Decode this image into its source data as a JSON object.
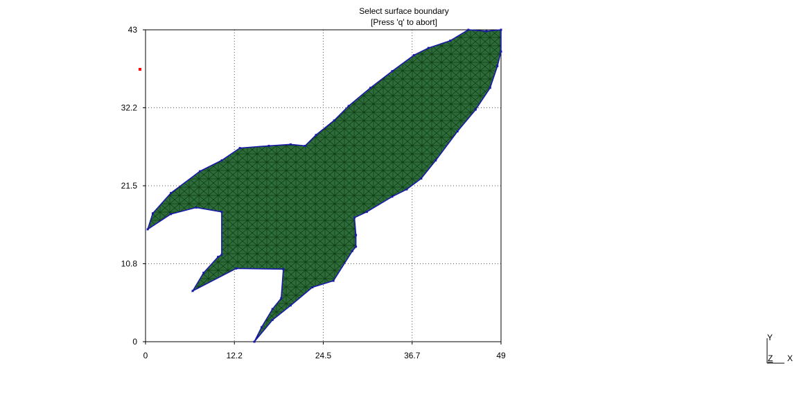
{
  "prompt": {
    "line1": "Select surface boundary",
    "line2": "[Press 'q' to abort]"
  },
  "axes_triad": {
    "y": "Y",
    "z": "Z",
    "x": "X"
  },
  "colors": {
    "mesh_fill": "#2e6b3a",
    "mesh_lines": "#0d3b12",
    "boundary": "#1a1aa8",
    "grid": "#555555",
    "marker": "#ff0000"
  },
  "chart_data": {
    "type": "mesh",
    "xlim": [
      0,
      49
    ],
    "ylim": [
      0,
      43
    ],
    "xticks": [
      "0",
      "12.2",
      "24.5",
      "36.7",
      "49"
    ],
    "yticks": [
      "0",
      "10.8",
      "21.5",
      "32.2",
      "43"
    ],
    "grid": "dotted",
    "boundary": [
      [
        15,
        0
      ],
      [
        17.5,
        3
      ],
      [
        20,
        5
      ],
      [
        23,
        7.5
      ],
      [
        25.9,
        8.4
      ],
      [
        28.5,
        12.5
      ],
      [
        29,
        13.1
      ],
      [
        29,
        14.7
      ],
      [
        28.8,
        17.1
      ],
      [
        30.5,
        17.9
      ],
      [
        34,
        20
      ],
      [
        36,
        21
      ],
      [
        38,
        22.5
      ],
      [
        40,
        25
      ],
      [
        43,
        29
      ],
      [
        45.5,
        32
      ],
      [
        47.5,
        35
      ],
      [
        48.5,
        38
      ],
      [
        49,
        40
      ],
      [
        49,
        43
      ],
      [
        47,
        42.8
      ],
      [
        44.5,
        43
      ],
      [
        42,
        41.5
      ],
      [
        39,
        40.5
      ],
      [
        37,
        39.5
      ],
      [
        34,
        37.3
      ],
      [
        31,
        35
      ],
      [
        28,
        32.5
      ],
      [
        26,
        30.5
      ],
      [
        23.5,
        28.5
      ],
      [
        22,
        27
      ],
      [
        20,
        27.2
      ],
      [
        17,
        27
      ],
      [
        13,
        26.7
      ],
      [
        10.5,
        25
      ],
      [
        7.5,
        23.5
      ],
      [
        3.5,
        20.5
      ],
      [
        1,
        17.7
      ],
      [
        0.3,
        15.5
      ],
      [
        3.5,
        17.6
      ],
      [
        7,
        18.5
      ],
      [
        10.5,
        17.9
      ],
      [
        10.5,
        12
      ],
      [
        10,
        11.7
      ],
      [
        8,
        9.5
      ],
      [
        6.5,
        7
      ],
      [
        12.5,
        10.1
      ],
      [
        19,
        10
      ],
      [
        18.7,
        6
      ],
      [
        17.5,
        4.5
      ],
      [
        16,
        2
      ],
      [
        15,
        0
      ]
    ]
  }
}
